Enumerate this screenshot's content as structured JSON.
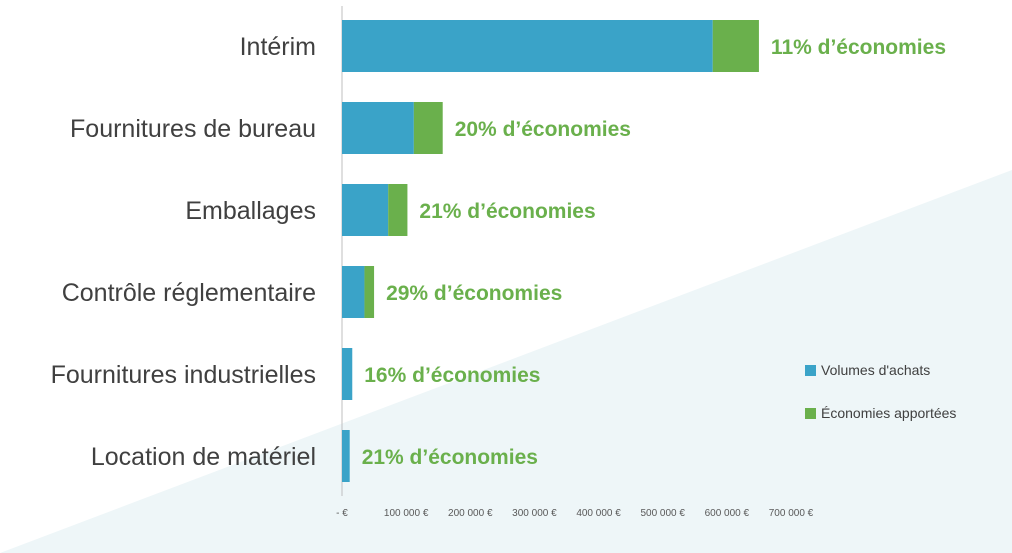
{
  "colors": {
    "background": "#ffffff",
    "background_band": "#eef6f8",
    "volumes": "#3aa3c8",
    "savings": "#6ab04c",
    "axis_line": "#bfbfbf",
    "category_text": "#404040",
    "tick_text": "#595959",
    "savings_label_text": "#6ab04c"
  },
  "chart_data": {
    "type": "bar",
    "orientation": "horizontal",
    "stacked": true,
    "categories": [
      "Intérim",
      "Fournitures de bureau",
      "Emballages",
      "Contrôle réglementaire",
      "Fournitures industrielles",
      "Location de matériel"
    ],
    "series": [
      {
        "name": "Volumes d'achats",
        "values": [
          578000,
          112000,
          72000,
          35000,
          16000,
          12000
        ]
      },
      {
        "name": "Économies apportées",
        "values": [
          72000,
          45000,
          30000,
          15000,
          0,
          0
        ]
      }
    ],
    "data_labels": [
      "11% d’économies",
      "20% d’économies",
      "21% d’économies",
      "29% d’économies",
      "16% d’économies",
      "21% d’économies"
    ],
    "xlim": [
      0,
      700000
    ],
    "x_ticks": [
      0,
      100000,
      200000,
      300000,
      400000,
      500000,
      600000,
      700000
    ],
    "x_tick_labels": [
      "-  €",
      "100 000 €",
      "200 000 €",
      "300 000 €",
      "400 000 €",
      "500 000 €",
      "600 000 €",
      "700 000 €"
    ],
    "title": "",
    "xlabel": "",
    "ylabel": "",
    "grid": false,
    "legend_position": "right"
  }
}
